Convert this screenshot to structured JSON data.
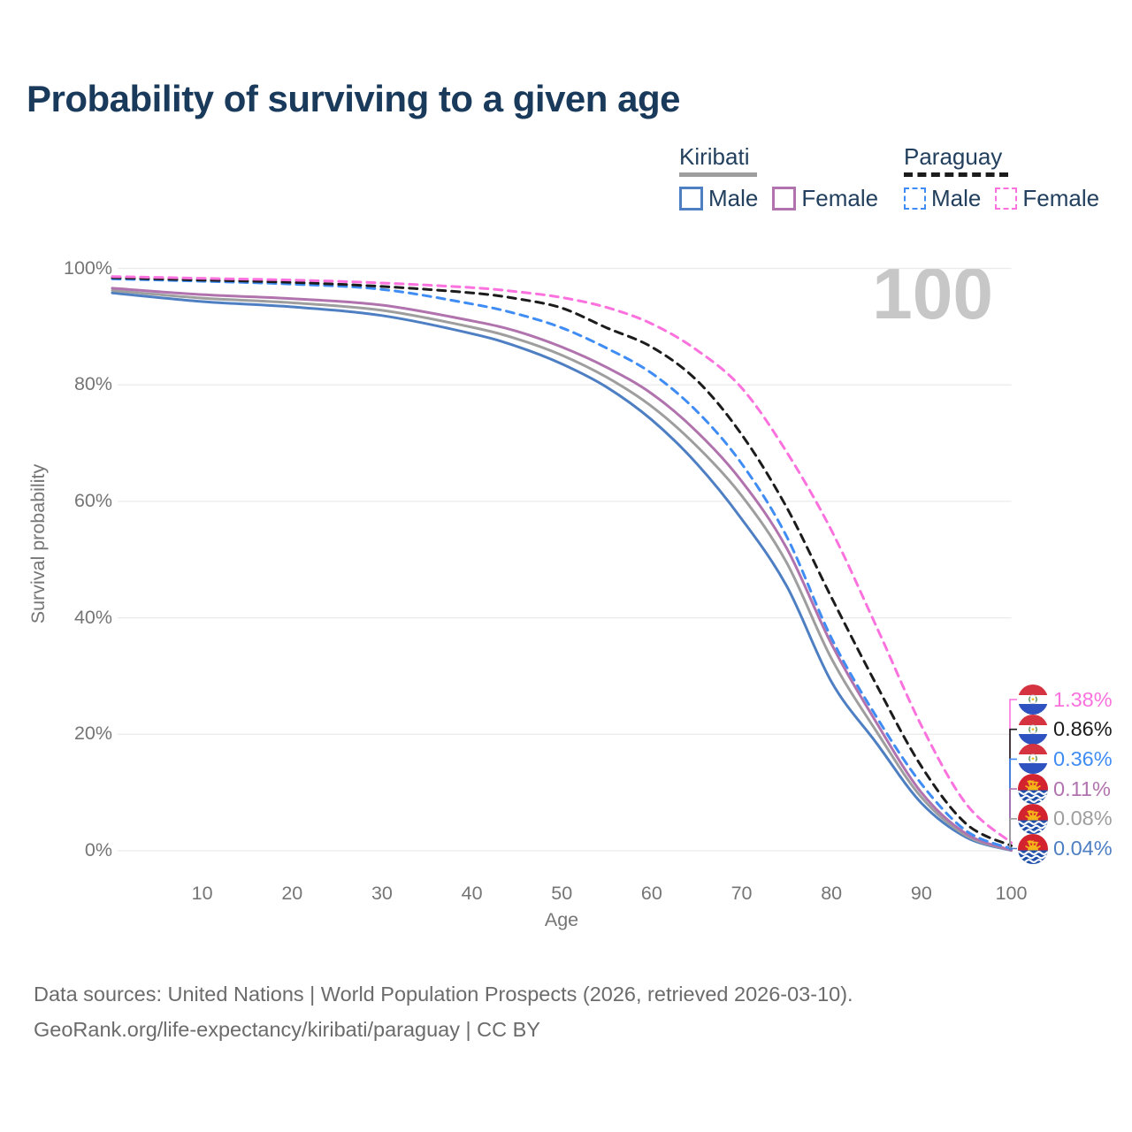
{
  "title": "Probability of surviving to a given age",
  "watermark": "100",
  "legend": {
    "groups": [
      {
        "label": "Kiribati",
        "line_style": "solid",
        "underline_color": "#9e9e9e",
        "items": [
          {
            "label": "Male",
            "color": "#4e7fc3"
          },
          {
            "label": "Female",
            "color": "#b173ae"
          }
        ]
      },
      {
        "label": "Paraguay",
        "line_style": "dashed",
        "underline_color": "#1c1c1c",
        "items": [
          {
            "label": "Male",
            "color": "#3f8df4"
          },
          {
            "label": "Female",
            "color": "#fb72de"
          }
        ]
      }
    ]
  },
  "axes": {
    "y_title": "Survival probability",
    "x_title": "Age",
    "y_ticks": [
      {
        "value": 100,
        "label": "100%"
      },
      {
        "value": 80,
        "label": "80%"
      },
      {
        "value": 60,
        "label": "60%"
      },
      {
        "value": 40,
        "label": "40%"
      },
      {
        "value": 20,
        "label": "20%"
      },
      {
        "value": 0,
        "label": "0%"
      }
    ],
    "x_ticks": [
      {
        "value": 10,
        "label": "10"
      },
      {
        "value": 20,
        "label": "20"
      },
      {
        "value": 30,
        "label": "30"
      },
      {
        "value": 40,
        "label": "40"
      },
      {
        "value": 50,
        "label": "50"
      },
      {
        "value": 60,
        "label": "60"
      },
      {
        "value": 70,
        "label": "70"
      },
      {
        "value": 80,
        "label": "80"
      },
      {
        "value": 90,
        "label": "90"
      },
      {
        "value": 100,
        "label": "100"
      }
    ]
  },
  "chart_data": {
    "type": "line",
    "title": "Probability of surviving to a given age",
    "xlabel": "Age",
    "ylabel": "Survival probability",
    "xlim": [
      0,
      100
    ],
    "ylim": [
      0,
      100
    ],
    "grid": "horizontal",
    "x": [
      0,
      10,
      20,
      30,
      40,
      45,
      50,
      55,
      60,
      65,
      70,
      75,
      80,
      85,
      90,
      95,
      100
    ],
    "series": [
      {
        "name": "Paraguay Female",
        "country": "paraguay",
        "sex": "female",
        "color": "#fb72de",
        "dashed": true,
        "end_label": "1.38%",
        "values": [
          98.6,
          98.3,
          98.0,
          97.5,
          96.7,
          96.0,
          95.0,
          93.3,
          90.5,
          86.0,
          79.5,
          68.5,
          55.0,
          38.5,
          21.5,
          8.0,
          1.38
        ]
      },
      {
        "name": "Paraguay Both sexes",
        "country": "paraguay",
        "sex": "both",
        "color": "#1c1c1c",
        "dashed": true,
        "end_label": "0.86%",
        "values": [
          98.4,
          98.0,
          97.6,
          96.9,
          95.8,
          94.8,
          93.2,
          89.8,
          86.5,
          80.8,
          71.5,
          59.0,
          43.5,
          28.5,
          14.5,
          4.6,
          0.86
        ]
      },
      {
        "name": "Paraguay Male",
        "country": "paraguay",
        "sex": "male",
        "color": "#3f8df4",
        "dashed": true,
        "end_label": "0.36%",
        "values": [
          98.2,
          97.8,
          97.3,
          96.4,
          93.9,
          92.2,
          89.8,
          86.3,
          82.0,
          75.5,
          66.5,
          54.0,
          36.5,
          23.0,
          11.5,
          3.4,
          0.36
        ]
      },
      {
        "name": "Kiribati Female",
        "country": "kiribati",
        "sex": "female",
        "color": "#b173ae",
        "dashed": false,
        "end_label": "0.11%",
        "values": [
          96.6,
          95.5,
          94.8,
          93.7,
          91.0,
          89.2,
          86.5,
          83.0,
          78.5,
          72.0,
          63.5,
          52.0,
          35.5,
          22.0,
          10.0,
          2.9,
          0.11
        ]
      },
      {
        "name": "Kiribati Both sexes",
        "country": "kiribati",
        "sex": "both",
        "color": "#9e9e9e",
        "dashed": false,
        "end_label": "0.08%",
        "values": [
          96.2,
          94.9,
          94.1,
          92.8,
          89.9,
          87.9,
          85.1,
          81.3,
          76.3,
          69.5,
          61.0,
          49.5,
          33.0,
          20.5,
          9.2,
          2.6,
          0.08
        ]
      },
      {
        "name": "Kiribati Male",
        "country": "kiribati",
        "sex": "male",
        "color": "#4e7fc3",
        "dashed": false,
        "end_label": "0.04%",
        "values": [
          95.8,
          94.3,
          93.4,
          91.9,
          88.8,
          86.6,
          83.6,
          79.6,
          74.0,
          66.5,
          57.0,
          45.5,
          29.0,
          18.5,
          8.2,
          2.3,
          0.04
        ]
      }
    ]
  },
  "footer": {
    "line1": "Data sources: United Nations | World Population Prospects (2026, retrieved 2026-03-10).",
    "line2": "GeoRank.org/life-expectancy/kiribati/paraguay | CC BY"
  }
}
